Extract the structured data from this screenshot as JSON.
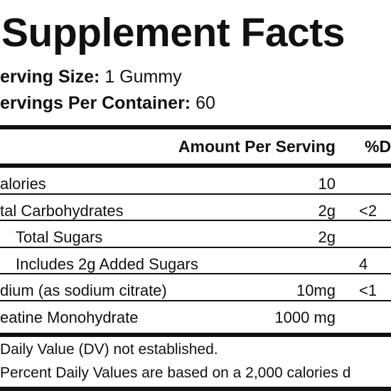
{
  "header": {
    "title": "Supplement Facts",
    "serving_size": {
      "label": "erving Size:",
      "value": "1 Gummy"
    },
    "servings_per_container": {
      "label": "ervings Per Container:",
      "value": "60"
    }
  },
  "table": {
    "columns": [
      "Amount Per Serving",
      "%D"
    ],
    "rows": [
      {
        "name": "alories",
        "amount": "10"
      },
      {
        "name": "tal Carbohydrates",
        "amount": "2g",
        "dv": "<2"
      },
      {
        "name": "Total Sugars",
        "amount": "2g"
      },
      {
        "name": "Includes 2g Added Sugars",
        "dv": "4"
      },
      {
        "name": "dium (as sodium citrate)",
        "amount": "10mg",
        "dv": "<1"
      },
      {
        "name": "eatine Monohydrate",
        "amount": "1000 mg"
      }
    ]
  },
  "footnotes": [
    "Daily Value (DV) not established.",
    "Percent Daily Values are based on a 2,000 calories d"
  ]
}
